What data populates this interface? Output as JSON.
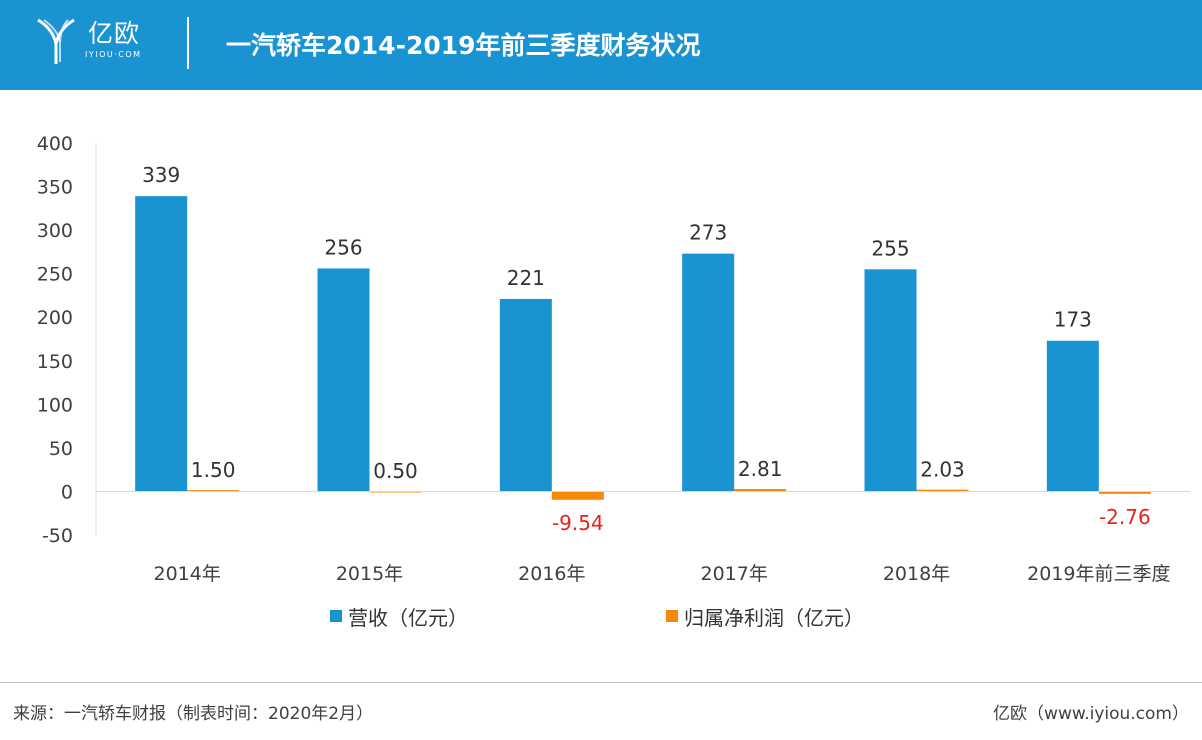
{
  "header": {
    "logo_text": "亿欧",
    "logo_sub": "IYIOU·COM",
    "title": "一汽轿车2014-2019年前三季度财务状况"
  },
  "colors": {
    "header_bg": "#1a93d2",
    "revenue": "#1a93d2",
    "profit": "#f5890a",
    "negative_label": "#e8231a"
  },
  "chart_data": {
    "type": "bar",
    "categories": [
      "2014年",
      "2015年",
      "2016年",
      "2017年",
      "2018年",
      "2019年前三季度"
    ],
    "series": [
      {
        "name": "营收（亿元）",
        "values": [
          339,
          256,
          221,
          273,
          255,
          173
        ],
        "labels": [
          "339",
          "256",
          "221",
          "273",
          "255",
          "173"
        ]
      },
      {
        "name": "归属净利润（亿元）",
        "values": [
          1.5,
          0.5,
          -9.54,
          2.81,
          2.03,
          -2.76
        ],
        "labels": [
          "1.50",
          "0.50",
          "-9.54",
          "2.81",
          "2.03",
          "-2.76"
        ]
      }
    ],
    "ylim": [
      -50,
      400
    ],
    "yticks": [
      "400",
      "350",
      "300",
      "250",
      "200",
      "150",
      "100",
      "50",
      "0",
      "-50"
    ],
    "ytick_values": [
      400,
      350,
      300,
      250,
      200,
      150,
      100,
      50,
      0,
      -50
    ],
    "legend_position": "bottom",
    "grid": false
  },
  "legend": {
    "revenue": "营收（亿元）",
    "profit": "归属净利润（亿元）"
  },
  "footer": {
    "source": "来源：一汽轿车财报（制表时间：2020年2月）",
    "brand": "亿欧（www.iyiou.com）"
  }
}
